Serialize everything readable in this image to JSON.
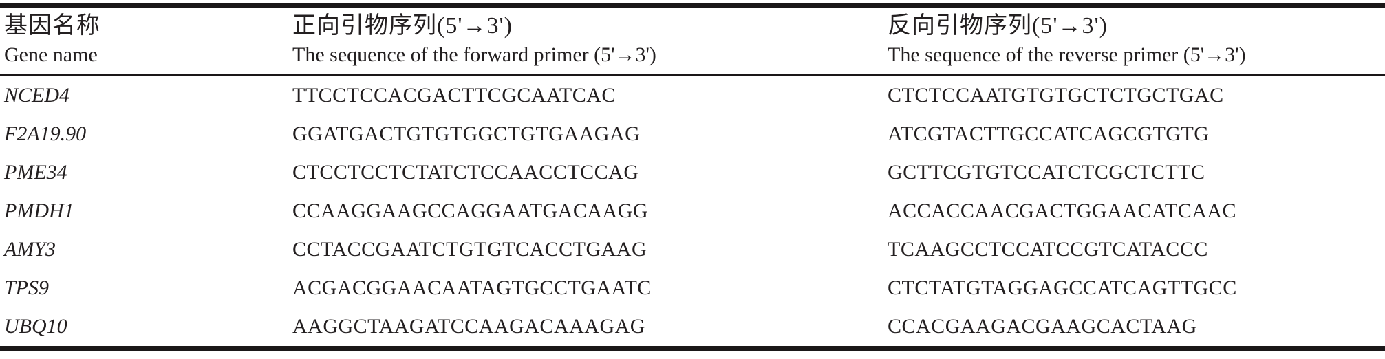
{
  "table": {
    "header": {
      "gene": {
        "zh": "基因名称",
        "en": "Gene name"
      },
      "forward": {
        "zh": "正向引物序列(5'→3')",
        "en": "The sequence of the forward primer (5'→3')"
      },
      "reverse": {
        "zh": "反向引物序列(5'→3')",
        "en": "The sequence of the reverse primer (5'→3')"
      }
    },
    "rows": [
      {
        "gene": "NCED4",
        "forward": "TTCCTCCACGACTTCGCAATCAC",
        "reverse": "CTCTCCAATGTGTGCTCTGCTGAC"
      },
      {
        "gene": "F2A19.90",
        "forward": "GGATGACTGTGTGGCTGTGAAGAG",
        "reverse": "ATCGTACTTGCCATCAGCGTGTG"
      },
      {
        "gene": "PME34",
        "forward": "CTCCTCCTCTATCTCCAACCTCCAG",
        "reverse": "GCTTCGTGTCCATCTCGCTCTTC"
      },
      {
        "gene": "PMDH1",
        "forward": "CCAAGGAAGCCAGGAATGACAAGG",
        "reverse": "ACCACCAACGACTGGAACATCAAC"
      },
      {
        "gene": "AMY3",
        "forward": "CCTACCGAATCTGTGTCACCTGAAG",
        "reverse": "TCAAGCCTCCATCCGTCATACCC"
      },
      {
        "gene": "TPS9",
        "forward": "ACGACGGAACAATAGTGCCTGAATC",
        "reverse": "CTCTATGTAGGAGCCATCAGTTGCC"
      },
      {
        "gene": "UBQ10",
        "forward": "AAGGCTAAGATCCAAGACAAAGAG",
        "reverse": "CCACGAAGACGAAGCACTAAG"
      }
    ],
    "colors": {
      "rule": "#1a1718",
      "text": "#231f20",
      "background": "#ffffff"
    }
  }
}
